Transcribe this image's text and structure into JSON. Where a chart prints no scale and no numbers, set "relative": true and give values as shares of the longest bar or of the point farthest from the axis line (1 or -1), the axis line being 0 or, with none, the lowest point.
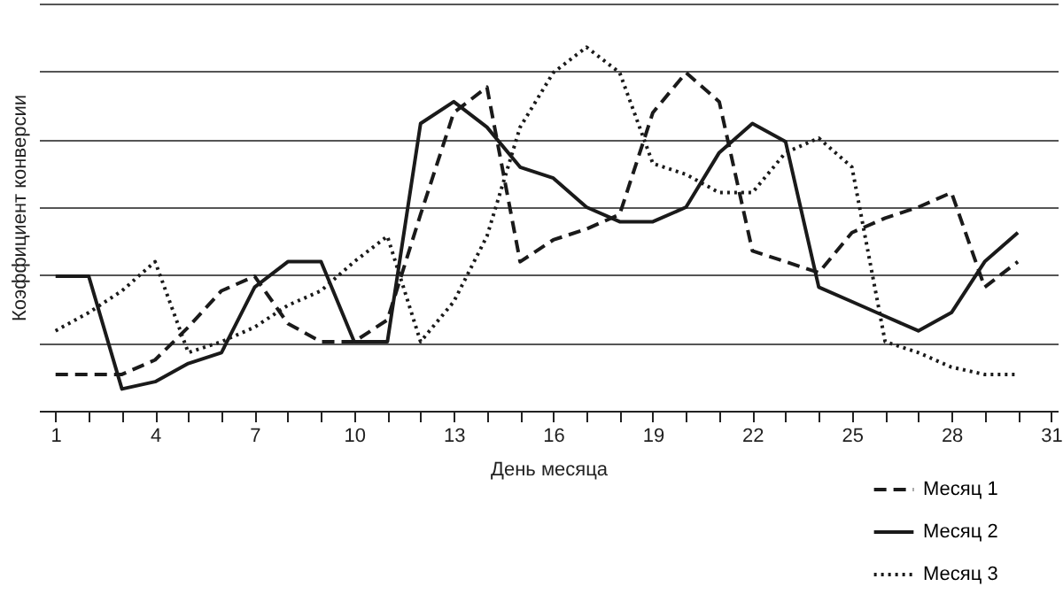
{
  "chart_data": {
    "type": "line",
    "relative": true,
    "xlabel": "День месяца",
    "ylabel": "Коэффициент конверсии",
    "x": [
      1,
      2,
      3,
      4,
      5,
      6,
      7,
      8,
      9,
      10,
      11,
      12,
      13,
      14,
      15,
      16,
      17,
      18,
      19,
      20,
      21,
      22,
      23,
      24,
      25,
      26,
      27,
      28,
      29,
      30
    ],
    "xlim": [
      0.5,
      31.2
    ],
    "xticks": [
      1,
      {
        "value": 2,
        "label": null
      },
      {
        "value": 3,
        "label": null
      },
      4,
      {
        "value": 5,
        "label": null
      },
      {
        "value": 6,
        "label": null
      },
      7,
      {
        "value": 8,
        "label": null
      },
      {
        "value": 9,
        "label": null
      },
      10,
      {
        "value": 11,
        "label": null
      },
      {
        "value": 12,
        "label": null
      },
      13,
      {
        "value": 14,
        "label": null
      },
      {
        "value": 15,
        "label": null
      },
      16,
      {
        "value": 17,
        "label": null
      },
      {
        "value": 18,
        "label": null
      },
      19,
      {
        "value": 20,
        "label": null
      },
      {
        "value": 21,
        "label": null
      },
      22,
      {
        "value": 23,
        "label": null
      },
      {
        "value": 24,
        "label": null
      },
      25,
      {
        "value": 26,
        "label": null
      },
      {
        "value": 27,
        "label": null
      },
      28,
      {
        "value": 29,
        "label": null
      },
      {
        "value": 30,
        "label": null
      },
      31
    ],
    "grid": "y",
    "legend": "bottom right",
    "marker": "none",
    "series": [
      {
        "name": "Месяц 1",
        "color": "#1a1a1a",
        "line_style": "dashed",
        "values": [
          0.1,
          0.1,
          0.1,
          0.14,
          0.23,
          0.33,
          0.37,
          0.24,
          0.19,
          0.19,
          0.25,
          0.54,
          0.82,
          0.89,
          0.41,
          0.47,
          0.5,
          0.54,
          0.82,
          0.93,
          0.85,
          0.44,
          0.41,
          0.38,
          0.49,
          0.53,
          0.56,
          0.6,
          0.34,
          0.41
        ]
      },
      {
        "name": "Месяц 2",
        "color": "#1a1a1a",
        "line_style": "solid",
        "values": [
          0.37,
          0.37,
          0.06,
          0.08,
          0.13,
          0.16,
          0.34,
          0.41,
          0.41,
          0.19,
          0.19,
          0.79,
          0.85,
          0.78,
          0.67,
          0.64,
          0.56,
          0.52,
          0.52,
          0.56,
          0.71,
          0.79,
          0.74,
          0.34,
          0.3,
          0.26,
          0.22,
          0.27,
          0.41,
          0.49
        ]
      },
      {
        "name": "Месяц 3",
        "color": "#1a1a1a",
        "line_style": "dotted",
        "values": [
          0.22,
          0.27,
          0.33,
          0.41,
          0.16,
          0.19,
          0.23,
          0.29,
          0.33,
          0.41,
          0.48,
          0.19,
          0.3,
          0.48,
          0.78,
          0.93,
          1,
          0.93,
          0.68,
          0.65,
          0.6,
          0.6,
          0.71,
          0.75,
          0.67,
          0.19,
          0.16,
          0.12,
          0.1,
          0.1
        ]
      }
    ]
  }
}
